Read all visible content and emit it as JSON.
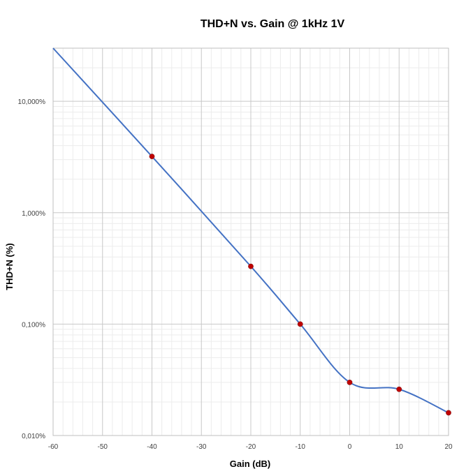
{
  "chart_data": {
    "type": "line",
    "title": "THD+N vs. Gain @ 1kHz 1V",
    "xlabel": "Gain (dB)",
    "ylabel": "THD+N  (%)",
    "xlim": [
      -60,
      20
    ],
    "ylim": [
      0.01,
      30
    ],
    "y_scale": "log",
    "grid": true,
    "x_ticks": [
      -60,
      -50,
      -40,
      -30,
      -20,
      -10,
      0,
      10,
      20
    ],
    "x_tick_labels": [
      "-60",
      "-50",
      "-40",
      "-30",
      "-20",
      "-10",
      "0",
      "10",
      "20"
    ],
    "y_ticks": [
      0.01,
      0.1,
      1,
      10
    ],
    "y_tick_labels": [
      "0,010%",
      "0,100%",
      "1,000%",
      "10,000%"
    ],
    "series": [
      {
        "color": "#4472C4",
        "marker_color": "#C00000",
        "smooth": true,
        "x": [
          -60,
          -40,
          -20,
          -10,
          0,
          10,
          20
        ],
        "y": [
          30,
          3.2,
          0.33,
          0.1,
          0.03,
          0.026,
          0.016
        ],
        "markers": [
          false,
          true,
          true,
          true,
          true,
          true,
          true
        ]
      }
    ]
  }
}
